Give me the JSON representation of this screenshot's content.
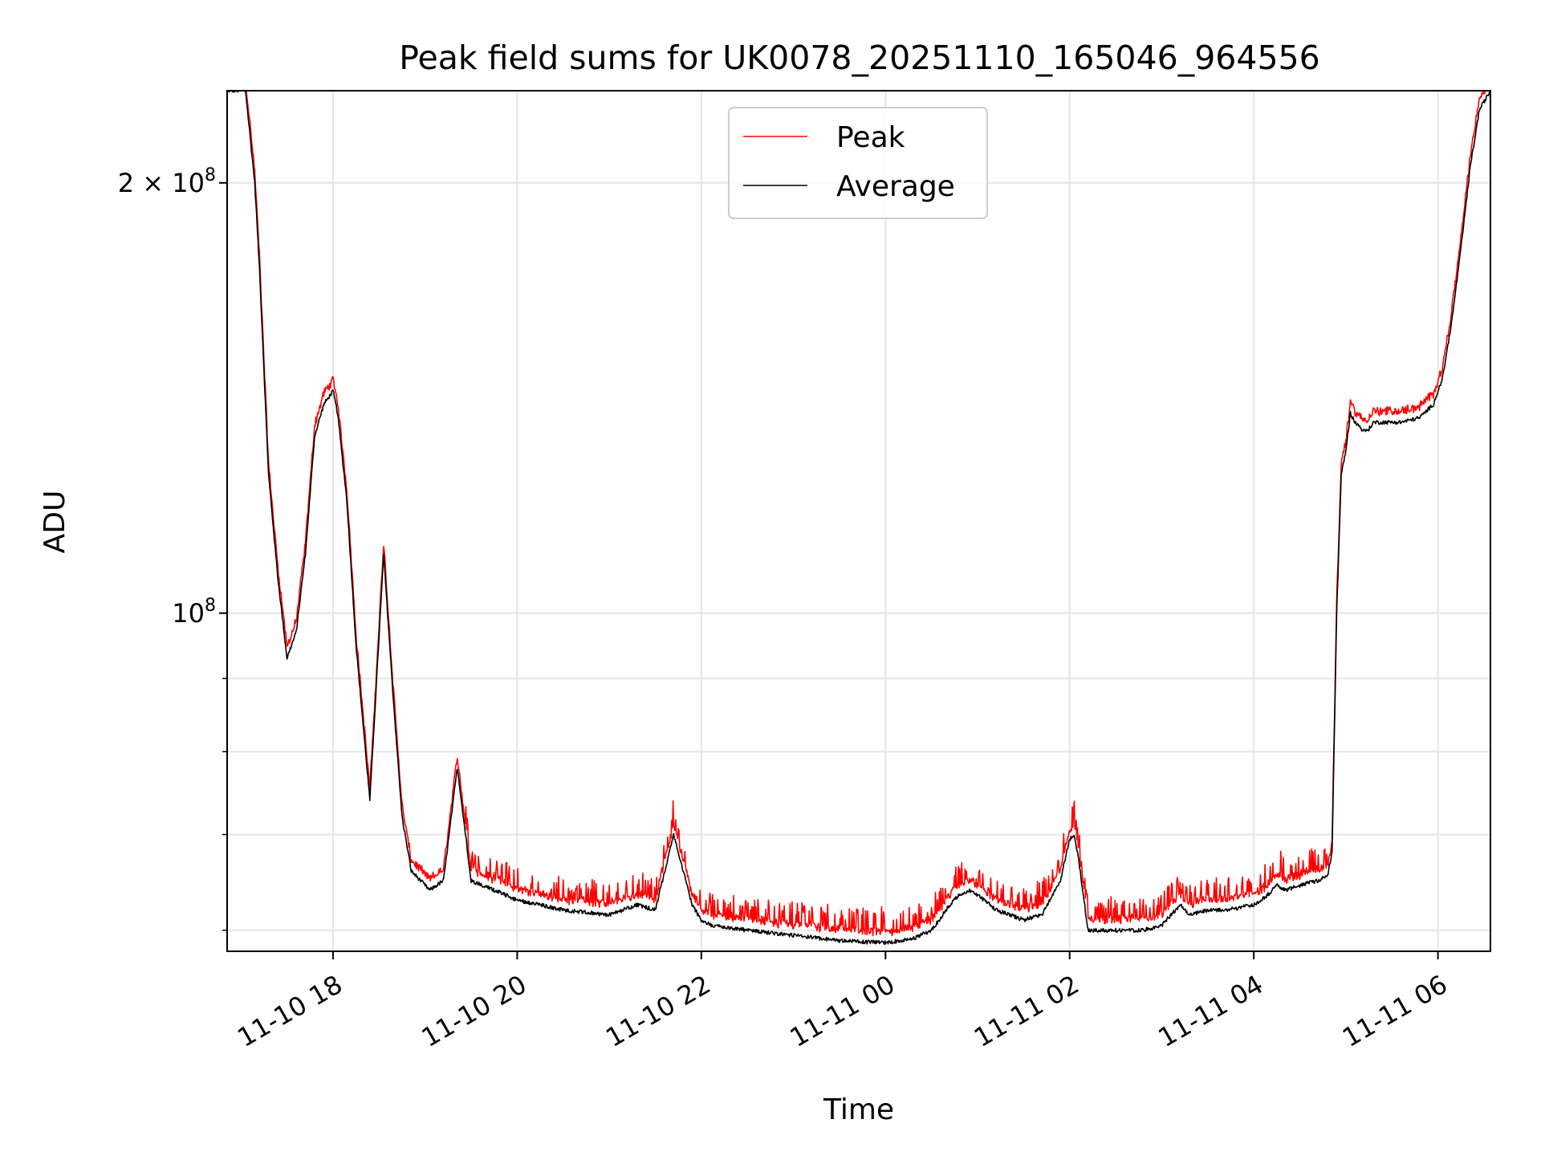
{
  "chart_data": {
    "type": "line",
    "title": "Peak field sums for UK0078_20251110_165046_964556",
    "xlabel": "Time",
    "ylabel": "ADU",
    "yscale": "log",
    "xlim_hours": [
      -7.15,
      6.57
    ],
    "ylim": [
      58000000,
      232000000
    ],
    "grid": true,
    "legend_position": "upper center",
    "x_ticks": [
      {
        "label": "11-10 18",
        "hours": -6
      },
      {
        "label": "11-10 20",
        "hours": -4
      },
      {
        "label": "11-10 22",
        "hours": -2
      },
      {
        "label": "11-11 00",
        "hours": 0
      },
      {
        "label": "11-11 02",
        "hours": 2
      },
      {
        "label": "11-11 04",
        "hours": 4
      },
      {
        "label": "11-11 06",
        "hours": 6
      }
    ],
    "y_major_ticks": [
      {
        "label_base": "10",
        "label_exp": "8",
        "value": 100000000
      },
      {
        "label_base": "2 × 10",
        "label_exp": "8",
        "value": 200000000
      }
    ],
    "y_minor_ticks": [
      60000000,
      70000000,
      80000000,
      90000000
    ],
    "series": [
      {
        "name": "Peak",
        "color": "#ff0000",
        "note": "closely follows Average; values about 1-3% higher with short upward spikes"
      },
      {
        "name": "Average",
        "color": "#000000",
        "x_hours": [
          -7.15,
          -6.95,
          -6.85,
          -6.8,
          -6.7,
          -6.6,
          -6.5,
          -6.4,
          -6.3,
          -6.2,
          -6.1,
          -6.0,
          -5.95,
          -5.85,
          -5.75,
          -5.6,
          -5.45,
          -5.35,
          -5.25,
          -5.15,
          -5.05,
          -4.95,
          -4.8,
          -4.65,
          -4.5,
          -4.25,
          -4.0,
          -3.5,
          -3.0,
          -2.7,
          -2.5,
          -2.3,
          -2.1,
          -2.0,
          -1.9,
          -1.5,
          -1.0,
          -0.5,
          0.0,
          0.3,
          0.5,
          0.7,
          0.8,
          0.9,
          1.0,
          1.2,
          1.5,
          1.7,
          1.9,
          2.0,
          2.05,
          2.1,
          2.2,
          2.4,
          2.8,
          3.0,
          3.1,
          3.2,
          3.3,
          3.5,
          3.7,
          4.0,
          4.15,
          4.25,
          4.35,
          4.5,
          4.7,
          4.8,
          4.85,
          4.9,
          4.95,
          5.0,
          5.05,
          5.1,
          5.2,
          5.25,
          5.3,
          5.4,
          5.6,
          5.8,
          5.95,
          6.05,
          6.15,
          6.25,
          6.35,
          6.45,
          6.57
        ],
        "values": [
          232000000,
          232000000,
          200000000,
          175000000,
          125000000,
          106000000,
          93000000,
          97000000,
          110000000,
          133000000,
          140000000,
          143000000,
          138000000,
          120000000,
          95000000,
          74000000,
          110000000,
          88000000,
          72000000,
          66000000,
          65000000,
          64000000,
          65000000,
          78000000,
          65000000,
          64000000,
          63000000,
          62000000,
          61500000,
          62500000,
          62000000,
          70000000,
          62500000,
          61000000,
          60500000,
          60000000,
          59500000,
          59000000,
          58800000,
          59200000,
          60000000,
          62500000,
          63500000,
          64000000,
          63500000,
          62000000,
          61000000,
          61500000,
          65000000,
          69500000,
          70000000,
          67000000,
          60000000,
          60000000,
          60000000,
          60500000,
          61500000,
          62500000,
          61500000,
          62000000,
          62000000,
          62500000,
          63500000,
          64500000,
          64000000,
          64500000,
          65000000,
          65500000,
          68000000,
          100000000,
          125000000,
          130000000,
          138000000,
          136000000,
          134000000,
          134500000,
          136000000,
          136000000,
          136000000,
          137000000,
          140000000,
          146000000,
          160000000,
          180000000,
          205000000,
          225000000,
          232000000
        ]
      }
    ]
  }
}
